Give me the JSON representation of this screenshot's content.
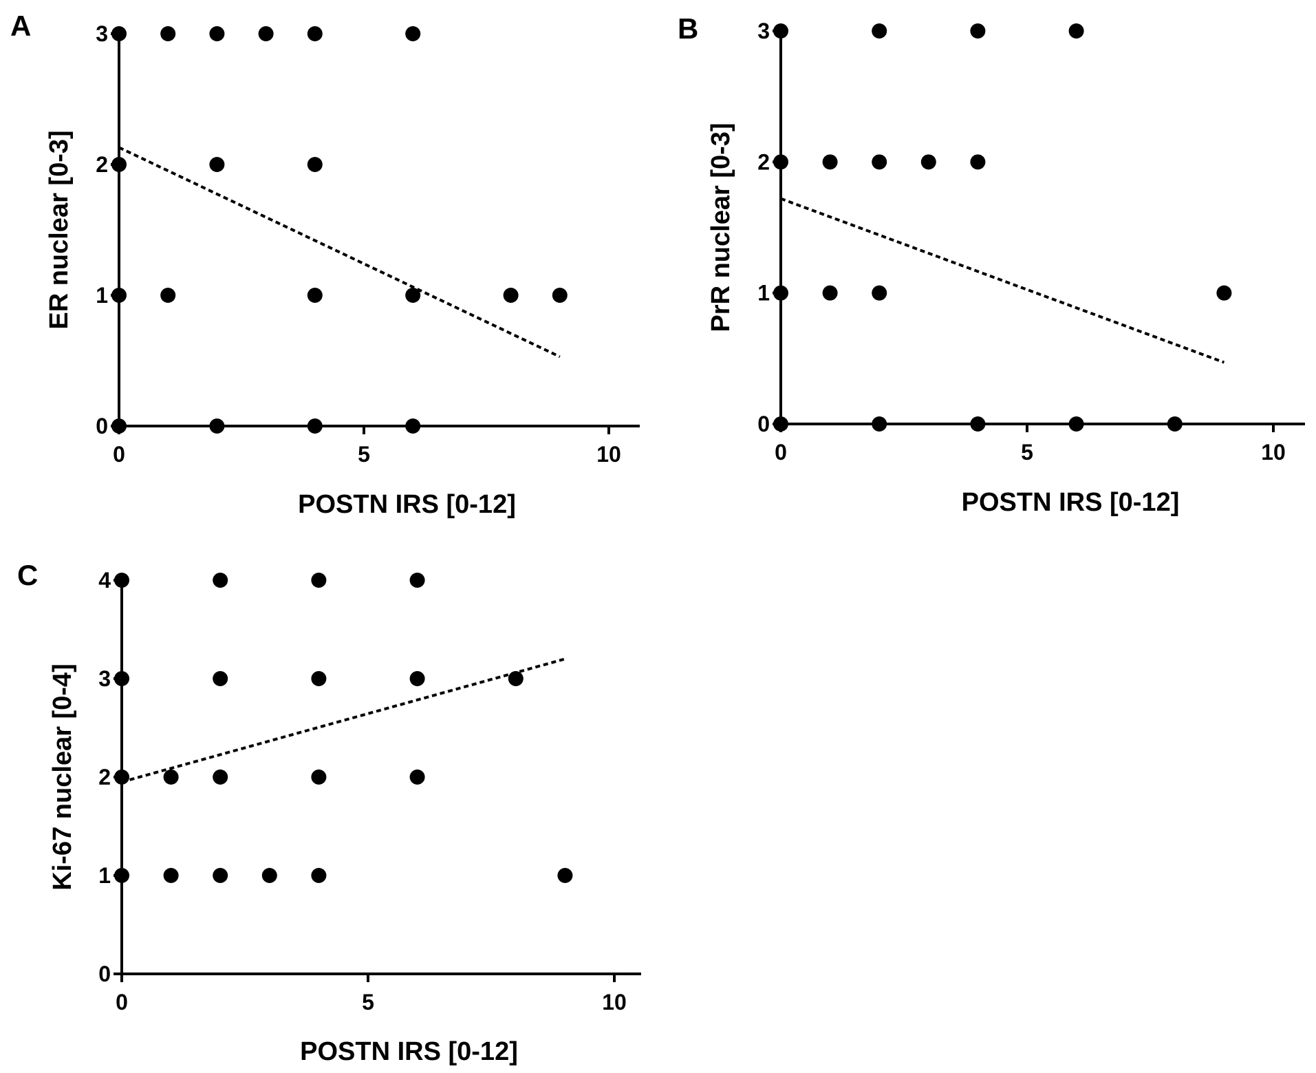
{
  "chart_data": [
    {
      "panel": "A",
      "type": "scatter",
      "xlabel": "POSTN IRS [0-12]",
      "ylabel": "ER nuclear [0-3]",
      "xlim": [
        0,
        10.8
      ],
      "ylim": [
        0,
        3
      ],
      "xticks": [
        0,
        5,
        10
      ],
      "yticks": [
        0,
        1,
        2,
        3
      ],
      "grid": false,
      "points": [
        [
          0,
          3
        ],
        [
          1,
          3
        ],
        [
          2,
          3
        ],
        [
          3,
          3
        ],
        [
          4,
          3
        ],
        [
          6,
          3
        ],
        [
          0,
          2
        ],
        [
          2,
          2
        ],
        [
          4,
          2
        ],
        [
          0,
          1
        ],
        [
          1,
          1
        ],
        [
          4,
          1
        ],
        [
          6,
          1
        ],
        [
          8,
          1
        ],
        [
          9,
          1
        ],
        [
          0,
          0
        ],
        [
          2,
          0
        ],
        [
          4,
          0
        ],
        [
          6,
          0
        ]
      ],
      "trendline": {
        "style": "dashed",
        "from": [
          0,
          2.13
        ],
        "to": [
          9,
          0.53
        ]
      },
      "color": "#000000"
    },
    {
      "panel": "B",
      "type": "scatter",
      "xlabel": "POSTN IRS [0-12]",
      "ylabel": "PrR nuclear [0-3]",
      "xlim": [
        0,
        10.8
      ],
      "ylim": [
        0,
        3
      ],
      "xticks": [
        0,
        5,
        10
      ],
      "yticks": [
        0,
        1,
        2,
        3
      ],
      "grid": false,
      "points": [
        [
          0,
          3
        ],
        [
          2,
          3
        ],
        [
          4,
          3
        ],
        [
          6,
          3
        ],
        [
          0,
          2
        ],
        [
          1,
          2
        ],
        [
          2,
          2
        ],
        [
          3,
          2
        ],
        [
          4,
          2
        ],
        [
          0,
          1
        ],
        [
          1,
          1
        ],
        [
          2,
          1
        ],
        [
          9,
          1
        ],
        [
          0,
          0
        ],
        [
          2,
          0
        ],
        [
          4,
          0
        ],
        [
          6,
          0
        ],
        [
          8,
          0
        ]
      ],
      "trendline": {
        "style": "dashed",
        "from": [
          0,
          1.72
        ],
        "to": [
          9,
          0.47
        ]
      },
      "color": "#000000"
    },
    {
      "panel": "C",
      "type": "scatter",
      "xlabel": "POSTN IRS [0-12]",
      "ylabel": "Ki-67 nuclear [0-4]",
      "xlim": [
        0,
        10.8
      ],
      "ylim": [
        0,
        4
      ],
      "xticks": [
        0,
        5,
        10
      ],
      "yticks": [
        0,
        1,
        2,
        3,
        4
      ],
      "grid": false,
      "points": [
        [
          0,
          4
        ],
        [
          2,
          4
        ],
        [
          4,
          4
        ],
        [
          6,
          4
        ],
        [
          0,
          3
        ],
        [
          2,
          3
        ],
        [
          4,
          3
        ],
        [
          6,
          3
        ],
        [
          8,
          3
        ],
        [
          0,
          2
        ],
        [
          1,
          2
        ],
        [
          2,
          2
        ],
        [
          4,
          2
        ],
        [
          6,
          2
        ],
        [
          0,
          1
        ],
        [
          1,
          1
        ],
        [
          2,
          1
        ],
        [
          3,
          1
        ],
        [
          4,
          1
        ],
        [
          9,
          1
        ]
      ],
      "trendline": {
        "style": "dashed",
        "from": [
          0,
          1.95
        ],
        "to": [
          9,
          3.2
        ]
      },
      "color": "#000000"
    }
  ]
}
